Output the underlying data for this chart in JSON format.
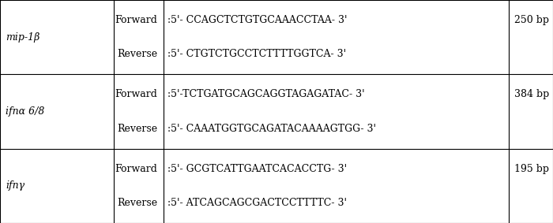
{
  "rows": [
    {
      "gene": "mip-1β",
      "forward_seq": ":5'- CCAGCTCTGTGCAAACCTAA- 3'",
      "reverse_seq": ":5'- CTGTCTGCCTCTTTTGGTCA- 3'",
      "size": "250 bp"
    },
    {
      "gene": "ifnα 6/8",
      "forward_seq": ":5'-TCTGATGCAGCAGGTAGAGATAC- 3'",
      "reverse_seq": ":5'- CAAATGGTGCAGATACAAAAGTGG- 3'",
      "size": "384 bp"
    },
    {
      "gene": "ifnγ",
      "forward_seq": ":5'- GCGTCATTGAATCACACCTG- 3'",
      "reverse_seq": ":5'- ATCAGCAGCGACTCCTTTTC- 3'",
      "size": "195 bp"
    }
  ],
  "col_bounds": [
    0.0,
    0.205,
    0.295,
    0.845,
    0.92,
    1.0
  ],
  "bg_color": "#ffffff",
  "line_color": "#000000",
  "text_color": "#000000",
  "fontsize": 9.0,
  "font_family": "serif"
}
